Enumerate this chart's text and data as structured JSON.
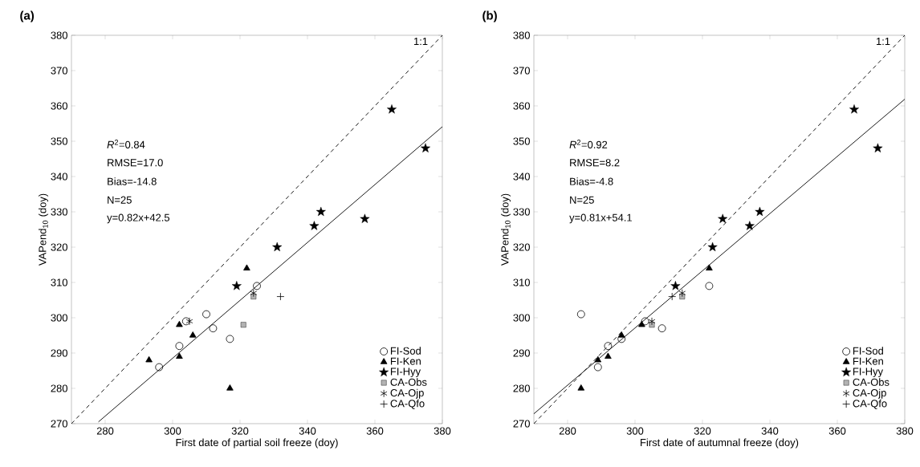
{
  "chart_data": [
    {
      "type": "scatter",
      "title": "(a)",
      "xlabel": "First date of partial soil freeze (doy)",
      "ylabel": "VAPend$_{10}$ (doy)",
      "xlim": [
        270,
        380
      ],
      "ylim": [
        270,
        380
      ],
      "xticks": [
        280,
        300,
        320,
        340,
        360,
        380
      ],
      "yticks": [
        270,
        280,
        290,
        300,
        310,
        320,
        330,
        340,
        350,
        360,
        370,
        380
      ],
      "legend": "bottom right",
      "grid": false,
      "annotations": [
        "*R*$^{2}$=0.84",
        "RMSE=17.0",
        "Bias=-14.8",
        "N=25",
        "y=0.82x+42.5",
        {
          "text": "1:1",
          "x": 376,
          "y": 377
        }
      ],
      "series": [
        {
          "name": "FI-Sod",
          "type": "scatter",
          "marker": "circle",
          "color": "#000000",
          "x": [
            296,
            302,
            304,
            310,
            312,
            317,
            325
          ],
          "values": [
            286,
            292,
            299,
            301,
            297,
            294,
            309
          ]
        },
        {
          "name": "FI-Ken",
          "type": "scatter",
          "marker": "triangle",
          "color": "#000000",
          "x": [
            293,
            302,
            302,
            306,
            317,
            322
          ],
          "values": [
            288,
            289,
            298,
            295,
            280,
            314
          ]
        },
        {
          "name": "FI-Hyy",
          "type": "scatter",
          "marker": "star",
          "color": "#000000",
          "x": [
            319,
            331,
            342,
            344,
            357,
            365,
            375
          ],
          "values": [
            309,
            320,
            326,
            330,
            328,
            359,
            348
          ]
        },
        {
          "name": "CA-Obs",
          "type": "scatter",
          "marker": "square",
          "color": "#b3b3b3",
          "x": [
            321,
            324
          ],
          "values": [
            298,
            306
          ]
        },
        {
          "name": "CA-Ojp",
          "type": "scatter",
          "color": "#000000",
          "x": [
            305,
            324
          ],
          "values": [
            299,
            307
          ]
        },
        {
          "name": "CA-Qfo",
          "type": "scatter",
          "marker": "cross",
          "color": "#000000",
          "x": [
            332
          ],
          "values": [
            306
          ]
        },
        {
          "type": "line",
          "line_style": "solid",
          "color": "#000000",
          "x": [
            278,
            380
          ],
          "values": [
            270.5,
            354.1
          ]
        },
        {
          "type": "line",
          "line_style": "dashed",
          "color": "#000000",
          "x": [
            270,
            380
          ],
          "values": [
            270,
            380
          ]
        }
      ]
    },
    {
      "type": "scatter",
      "title": "(b)",
      "xlabel": "First date of autumnal freeze (doy)",
      "ylabel": "VAPend$_{10}$ (doy)",
      "xlim": [
        270,
        380
      ],
      "ylim": [
        270,
        380
      ],
      "xticks": [
        280,
        300,
        320,
        340,
        360,
        380
      ],
      "yticks": [
        270,
        280,
        290,
        300,
        310,
        320,
        330,
        340,
        350,
        360,
        370,
        380
      ],
      "legend": "bottom right",
      "grid": false,
      "annotations": [
        "*R*$^{2}$=0.92",
        "RMSE=8.2",
        "Bias=-4.8",
        "N=25",
        "y=0.81x+54.1",
        {
          "text": "1:1",
          "x": 376,
          "y": 377
        }
      ],
      "series": [
        {
          "name": "FI-Sod",
          "type": "scatter",
          "marker": "circle",
          "color": "#000000",
          "x": [
            284,
            289,
            292,
            296,
            303,
            308,
            322
          ],
          "values": [
            301,
            286,
            292,
            294,
            299,
            297,
            309
          ]
        },
        {
          "name": "FI-Ken",
          "type": "scatter",
          "marker": "triangle",
          "color": "#000000",
          "x": [
            284,
            289,
            292,
            296,
            302,
            322
          ],
          "values": [
            280,
            288,
            289,
            295,
            298,
            314
          ]
        },
        {
          "name": "FI-Hyy",
          "type": "scatter",
          "marker": "star",
          "color": "#000000",
          "x": [
            312,
            323,
            326,
            334,
            337,
            365,
            372
          ],
          "values": [
            309,
            320,
            328,
            326,
            330,
            359,
            348
          ]
        },
        {
          "name": "CA-Obs",
          "type": "scatter",
          "marker": "square",
          "color": "#b3b3b3",
          "x": [
            305,
            314
          ],
          "values": [
            298,
            306
          ]
        },
        {
          "name": "CA-Ojp",
          "type": "scatter",
          "color": "#000000",
          "x": [
            305,
            314
          ],
          "values": [
            299,
            307
          ]
        },
        {
          "name": "CA-Qfo",
          "type": "scatter",
          "marker": "cross",
          "color": "#000000",
          "x": [
            311
          ],
          "values": [
            306
          ]
        },
        {
          "type": "line",
          "line_style": "solid",
          "color": "#000000",
          "x": [
            270,
            380
          ],
          "values": [
            272.8,
            361.9
          ]
        },
        {
          "type": "line",
          "line_style": "dashed",
          "color": "#000000",
          "x": [
            270,
            380
          ],
          "values": [
            270,
            380
          ]
        }
      ]
    }
  ]
}
